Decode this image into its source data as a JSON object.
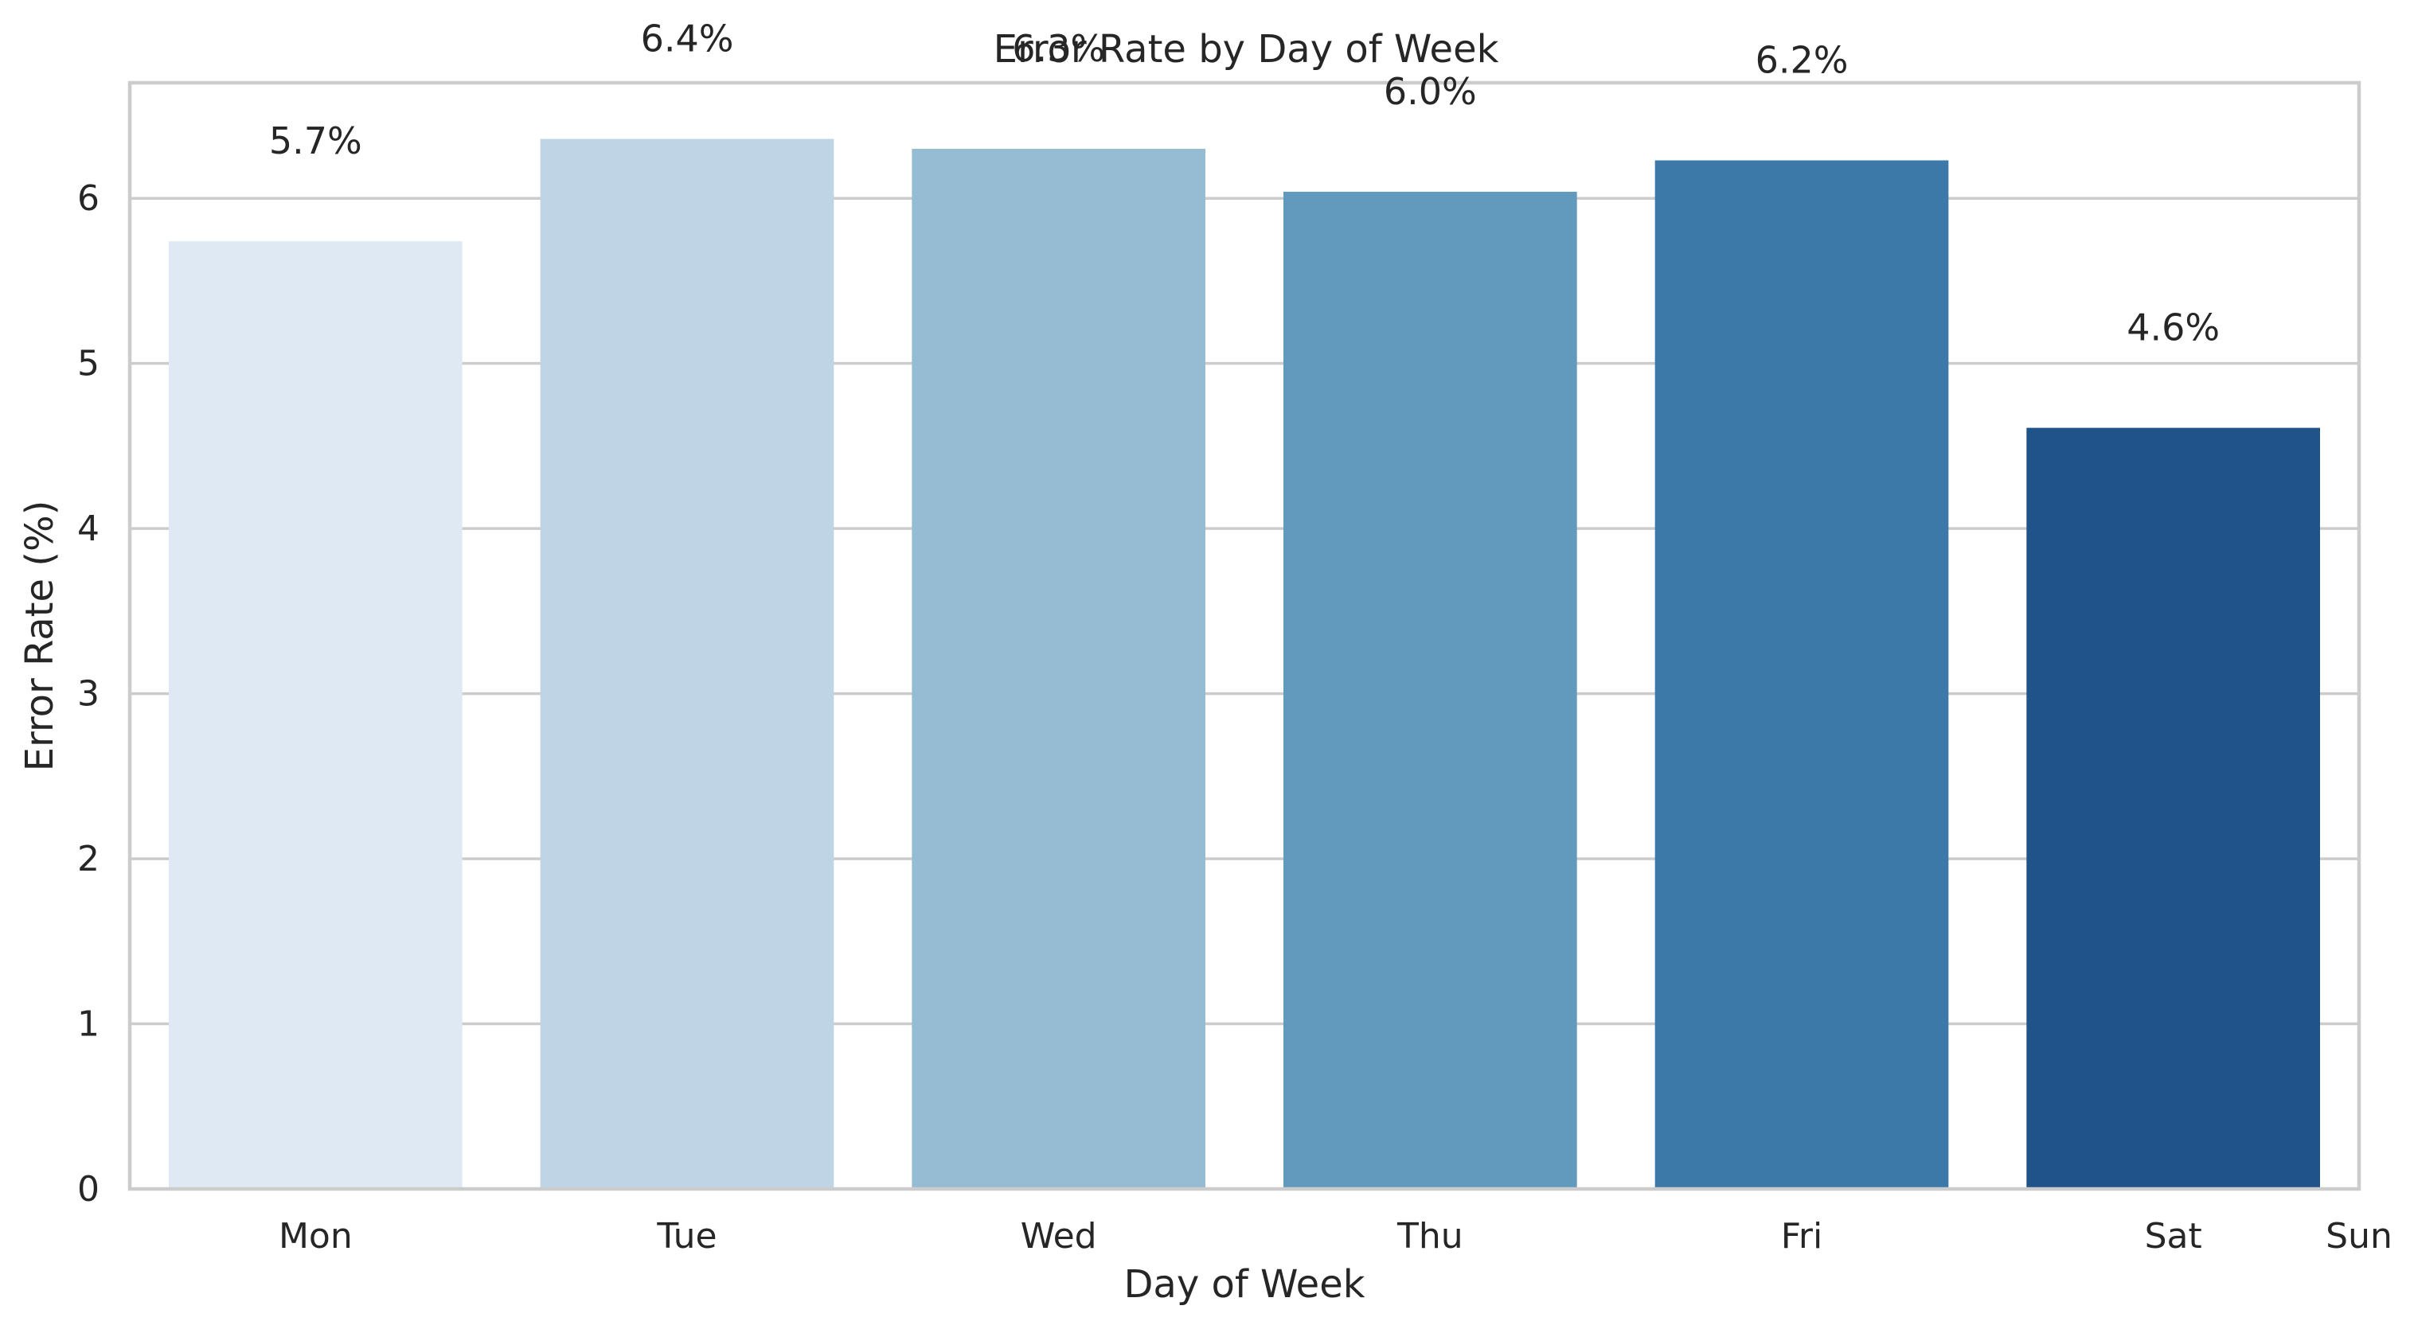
{
  "chart_data": {
    "type": "bar",
    "title": "Error Rate by Day of Week",
    "xlabel": "Day of Week",
    "ylabel": "Error Rate (%)",
    "categories": [
      "Mon",
      "Tue",
      "Wed",
      "Thu",
      "Fri",
      "Sat",
      "Sun"
    ],
    "values": [
      5.74,
      6.36,
      6.3,
      6.04,
      6.23,
      4.61,
      null
    ],
    "data_labels": [
      "5.7%",
      "6.4%",
      "6.3%",
      "6.0%",
      "6.2%",
      "4.6%",
      ""
    ],
    "ylim": [
      0,
      6.7
    ],
    "yticks": [
      0,
      1,
      2,
      3,
      4,
      5,
      6
    ],
    "grid": "y",
    "legend": "none",
    "bar_colors": [
      "#dfe9f4",
      "#bfd5e6",
      "#95bcd3",
      "#629abd",
      "#3c79a8",
      "#1f538a",
      "#0b3a70"
    ],
    "colors": {
      "grid": "#cccccc",
      "spine": "#cccccc",
      "text": "#262626"
    }
  }
}
